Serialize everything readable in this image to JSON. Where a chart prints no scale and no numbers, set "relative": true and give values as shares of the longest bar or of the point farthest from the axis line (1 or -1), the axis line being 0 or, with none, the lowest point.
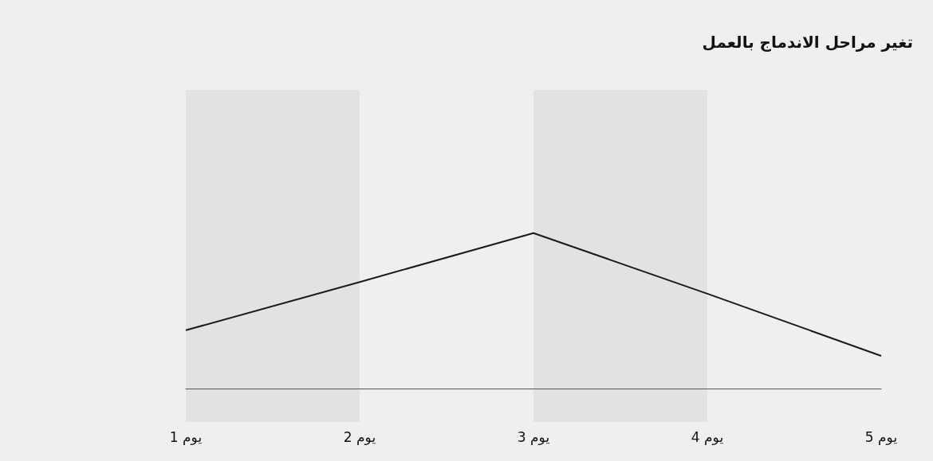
{
  "chart_data": {
    "type": "line",
    "title": "تغير مراحل الاندماج بالعمل",
    "relative": true,
    "categories": [
      "يوم 1",
      "يوم 2",
      "يوم 3",
      "يوم 4",
      "يوم 5"
    ],
    "series": [
      {
        "color": "#1a1a1a",
        "values": [
          0.375,
          0.685,
          1,
          0.61,
          0.21
        ]
      }
    ],
    "bands": [
      {
        "axis": "x",
        "from": "يوم 1",
        "to": "يوم 2",
        "color": "#e1e2e4"
      },
      {
        "axis": "x",
        "from": "يوم 3",
        "to": "يوم 4",
        "color": "#e1e2e4"
      }
    ],
    "grid": false,
    "marker": "none",
    "line_style": "solid"
  }
}
